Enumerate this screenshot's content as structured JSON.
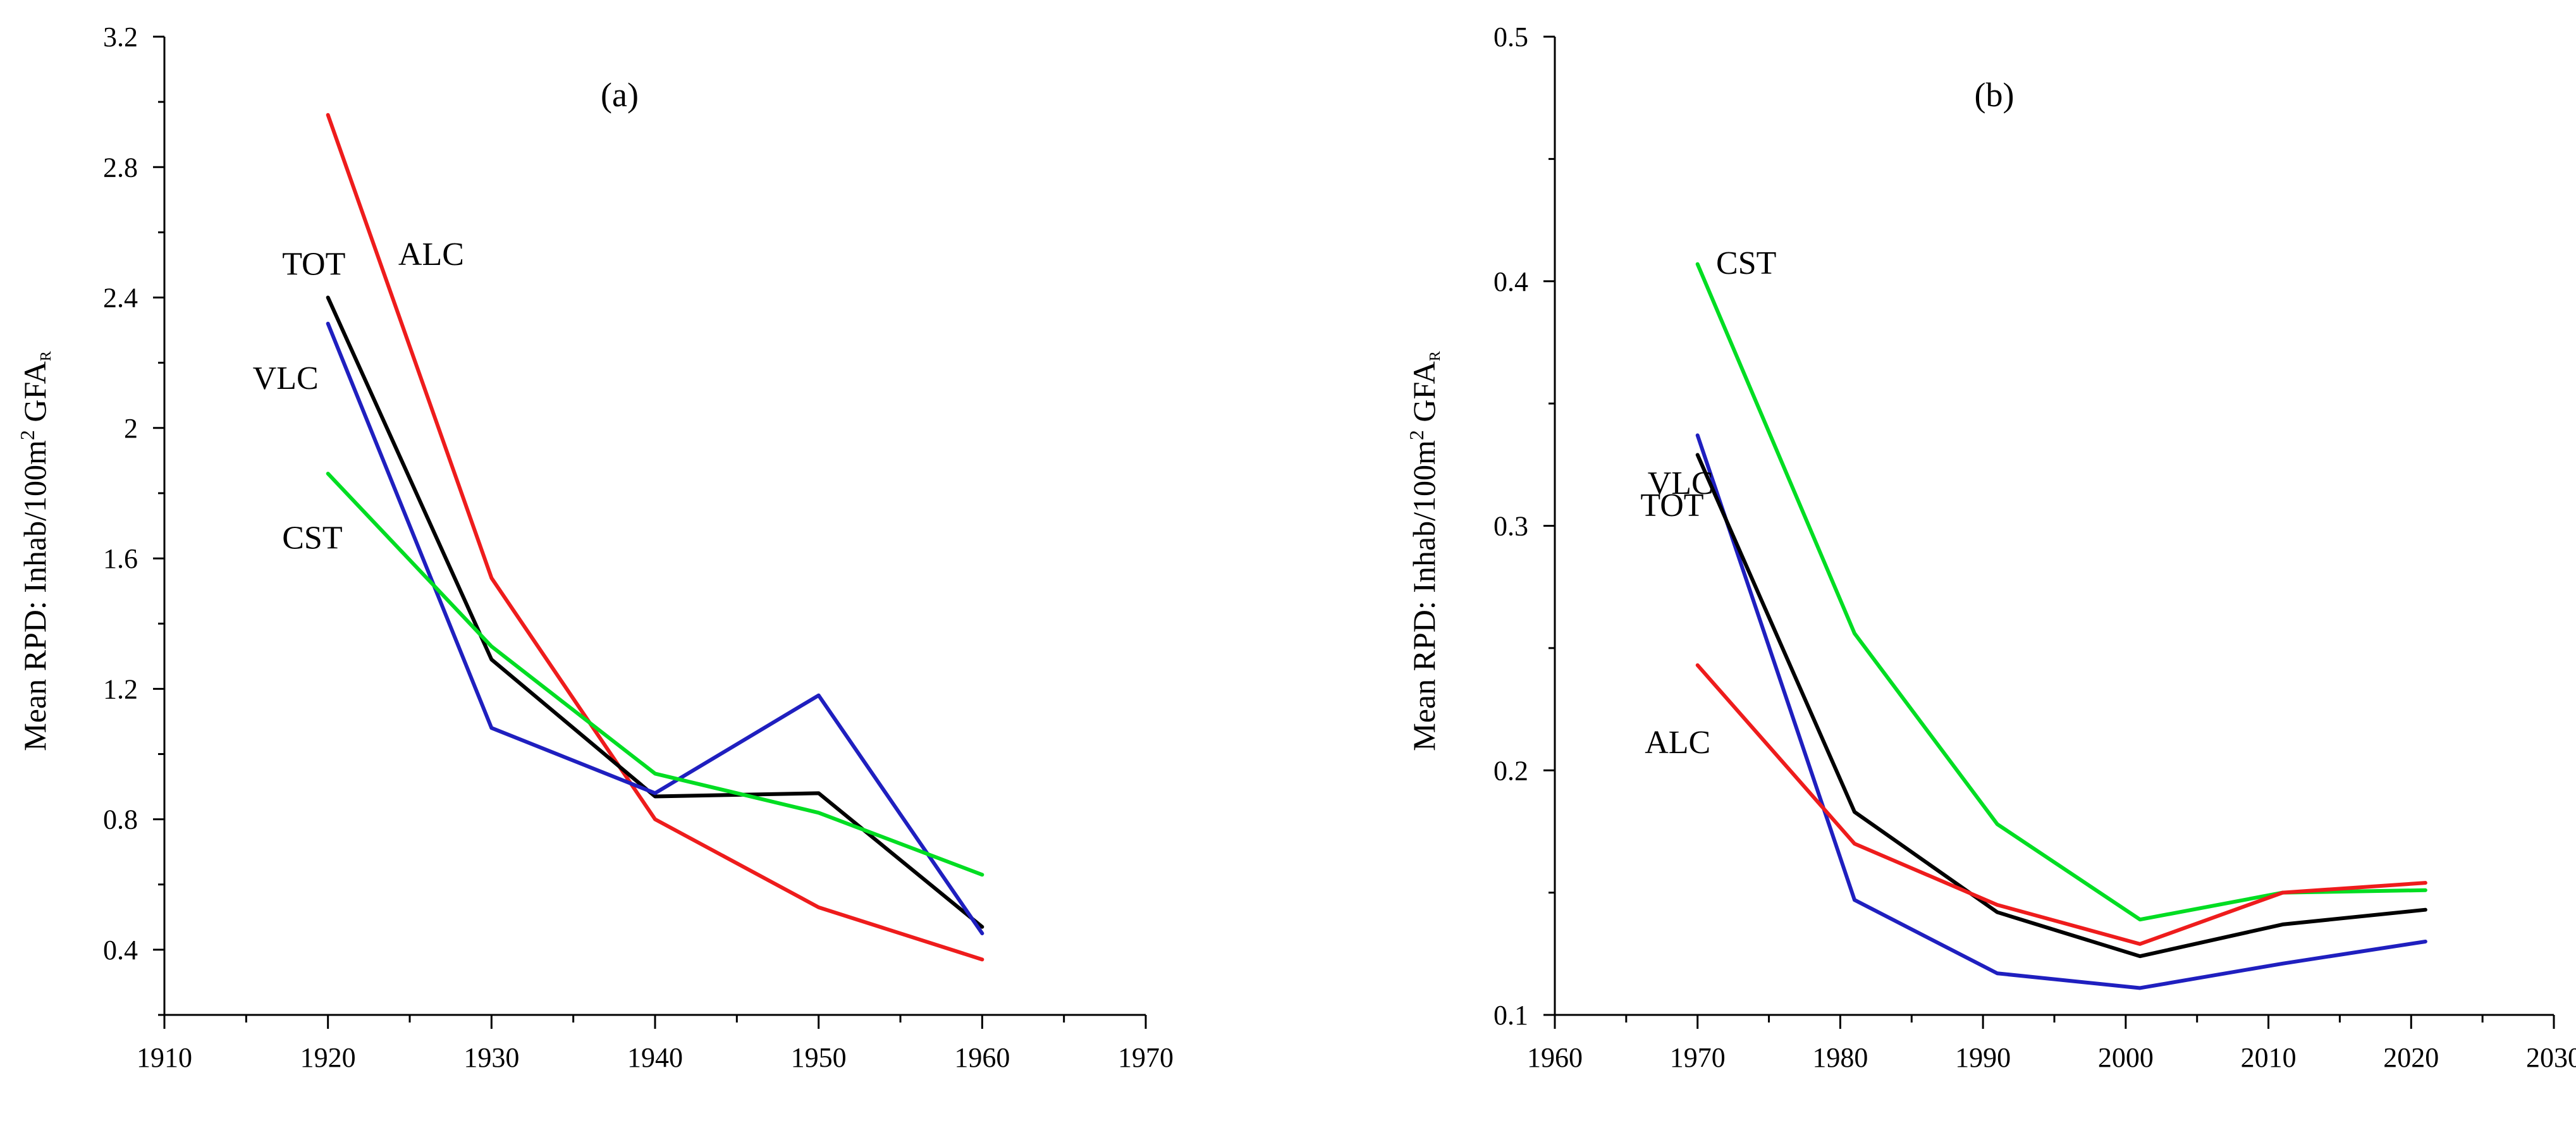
{
  "colors": {
    "ALC": "#ee1c1c",
    "TOT": "#000000",
    "VLC": "#1f1fbf",
    "CST": "#00dd22",
    "axis": "#000000"
  },
  "chart_data": [
    {
      "type": "line",
      "title": "(a)",
      "ylabel": "Mean RPD: Inhab/100m² GFA_R",
      "ylabel_parts": {
        "pre": "Mean RPD: Inhab/100m",
        "sup": "2",
        "mid": " GFA",
        "sub": "R"
      },
      "xlabel": "",
      "xlim": [
        1910,
        1970
      ],
      "ylim": [
        0.2,
        3.2
      ],
      "xticks": [
        1910,
        1920,
        1930,
        1940,
        1950,
        1960,
        1970
      ],
      "yticks": [
        0.4,
        0.8,
        1.2,
        1.6,
        2,
        2.4,
        2.8,
        3.2
      ],
      "yticks_labels": [
        "0.4",
        "0.8",
        "1.2",
        "1.6",
        "2",
        "2.4",
        "2.8",
        "3.2"
      ],
      "series": [
        {
          "name": "ALC",
          "x": [
            1920,
            1930,
            1940,
            1950,
            1960
          ],
          "values": [
            2.96,
            1.54,
            0.8,
            0.53,
            0.37
          ]
        },
        {
          "name": "TOT",
          "x": [
            1920,
            1930,
            1940,
            1950,
            1960
          ],
          "values": [
            2.4,
            1.29,
            0.87,
            0.88,
            0.47
          ]
        },
        {
          "name": "VLC",
          "x": [
            1920,
            1930,
            1940,
            1950,
            1960
          ],
          "values": [
            2.32,
            1.08,
            0.88,
            1.18,
            0.45
          ]
        },
        {
          "name": "CST",
          "x": [
            1920,
            1930,
            1940,
            1950,
            1960
          ],
          "values": [
            1.86,
            1.33,
            0.94,
            0.82,
            0.63
          ]
        }
      ],
      "labels": [
        {
          "text": "TOT",
          "x": 1917.2,
          "y": 2.47
        },
        {
          "text": "ALC",
          "x": 1924.3,
          "y": 2.5
        },
        {
          "text": "VLC",
          "x": 1915.4,
          "y": 2.12
        },
        {
          "text": "CST",
          "x": 1917.2,
          "y": 1.63
        }
      ]
    },
    {
      "type": "line",
      "title": "(b)",
      "ylabel": "Mean RPD: Inhab/100m² GFA_R",
      "ylabel_parts": {
        "pre": "Mean RPD: Inhab/100m",
        "sup": "2",
        "mid": " GFA",
        "sub": "R"
      },
      "xlabel": "",
      "xlim": [
        1960,
        2030
      ],
      "ylim": [
        0.1,
        0.5
      ],
      "xticks": [
        1960,
        1970,
        1980,
        1990,
        2000,
        2010,
        2020,
        2030
      ],
      "yticks": [
        0.1,
        0.2,
        0.3,
        0.4,
        0.5
      ],
      "yticks_labels": [
        "0.1",
        "0.2",
        "0.3",
        "0.4",
        "0.5"
      ],
      "series": [
        {
          "name": "CST",
          "x": [
            1970,
            1981,
            1991,
            2001,
            2011,
            2021
          ],
          "values": [
            0.407,
            0.256,
            0.178,
            0.139,
            0.15,
            0.151
          ]
        },
        {
          "name": "VLC",
          "x": [
            1970,
            1981,
            1991,
            2001,
            2011,
            2021
          ],
          "values": [
            0.337,
            0.147,
            0.117,
            0.111,
            0.121,
            0.13
          ]
        },
        {
          "name": "TOT",
          "x": [
            1970,
            1981,
            1991,
            2001,
            2011,
            2021
          ],
          "values": [
            0.329,
            0.183,
            0.142,
            0.124,
            0.137,
            0.143
          ]
        },
        {
          "name": "ALC",
          "x": [
            1970,
            1981,
            1991,
            2001,
            2011,
            2021
          ],
          "values": [
            0.243,
            0.17,
            0.145,
            0.129,
            0.15,
            0.154
          ]
        }
      ],
      "labels": [
        {
          "text": "CST",
          "x": 1971.3,
          "y": 0.403
        },
        {
          "text": "VLC",
          "x": 1966.5,
          "y": 0.313
        },
        {
          "text": "TOT",
          "x": 1966,
          "y": 0.304
        },
        {
          "text": "ALC",
          "x": 1966.3,
          "y": 0.207
        }
      ]
    }
  ]
}
